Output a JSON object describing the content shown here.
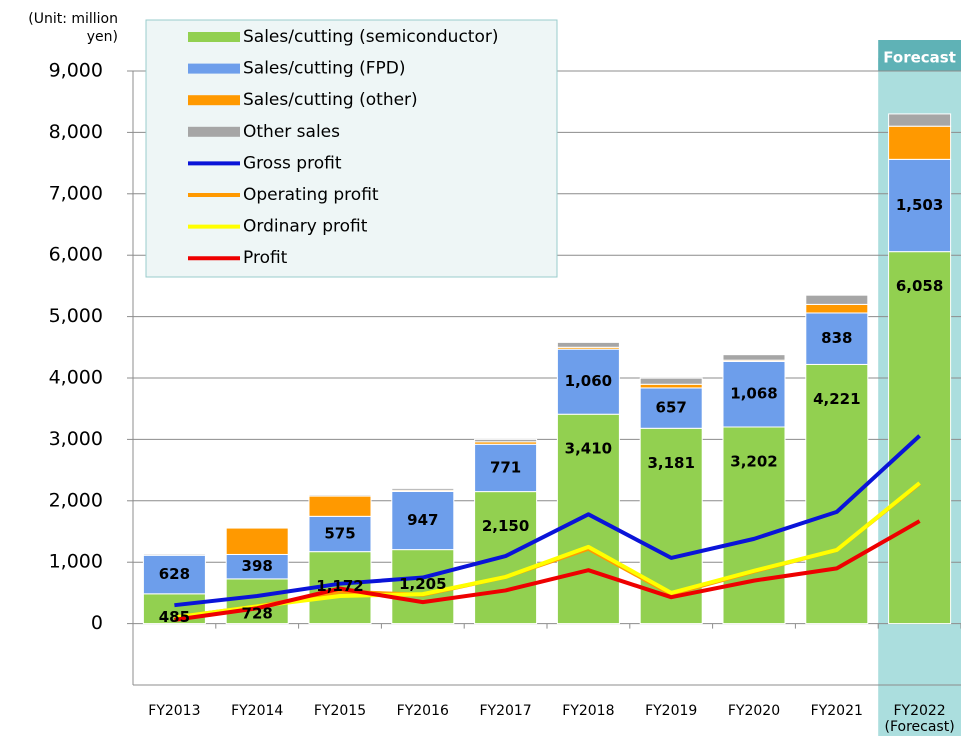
{
  "chart_data": {
    "type": "bar",
    "stacked": true,
    "y_axis_label": "(Unit: million yen)",
    "forecast_label": "Forecast",
    "categories": [
      "FY2013",
      "FY2014",
      "FY2015",
      "FY2016",
      "FY2017",
      "FY2018",
      "FY2019",
      "FY2020",
      "FY2021",
      "FY2022 (Forecast)"
    ],
    "ylim": [
      -1000,
      9000
    ],
    "yticks": [
      0,
      {
        "value": 1000,
        "label": "1,000"
      },
      {
        "value": 2000,
        "label": "2,000"
      },
      {
        "value": 3000,
        "label": "3,000"
      },
      {
        "value": 4000,
        "label": "4,000"
      },
      {
        "value": 5000,
        "label": "5,000"
      },
      {
        "value": 6000,
        "label": "6,000"
      },
      {
        "value": 7000,
        "label": "7,000"
      },
      {
        "value": 8000,
        "label": "8,000"
      },
      {
        "value": 9000,
        "label": "9,000"
      }
    ],
    "grid": true,
    "legend": "top-left",
    "series": [
      {
        "name": "Sales/cutting (semiconductor)",
        "type": "bar",
        "color": "#92d050",
        "values": [
          485,
          728,
          1172,
          1205,
          2150,
          3410,
          3181,
          3202,
          4221,
          6058
        ],
        "value_labels": [
          "485",
          "728",
          "1,172",
          "1,205",
          "2,150",
          "3,410",
          "3,181",
          "3,202",
          "4,221",
          "6,058"
        ]
      },
      {
        "name": "Sales/cutting (FPD)",
        "type": "bar",
        "color": "#6d9eeb",
        "values": [
          628,
          398,
          575,
          947,
          771,
          1060,
          657,
          1068,
          838,
          1503
        ],
        "value_labels": [
          "628",
          "398",
          "575",
          "947",
          "771",
          "1,060",
          "657",
          "1,068",
          "838",
          "1,503"
        ]
      },
      {
        "name": "Sales/cutting (other)",
        "type": "bar",
        "color": "#ff9900",
        "values": [
          0,
          430,
          330,
          20,
          40,
          30,
          60,
          20,
          140,
          540
        ]
      },
      {
        "name": "Other sales",
        "type": "bar",
        "color": "#a6a6a6",
        "values": [
          20,
          0,
          20,
          30,
          40,
          80,
          100,
          90,
          150,
          200
        ]
      },
      {
        "name": "Gross profit",
        "type": "line",
        "color": "#0a14d8",
        "values": [
          300,
          450,
          650,
          750,
          1100,
          1780,
          1070,
          1380,
          1820,
          3060
        ]
      },
      {
        "name": "Operating profit",
        "type": "line",
        "color": "#ff9900",
        "values": [
          100,
          280,
          520,
          470,
          760,
          1220,
          480,
          850,
          1200,
          2280
        ]
      },
      {
        "name": "Ordinary profit",
        "type": "line",
        "color": "#ffff00",
        "values": [
          100,
          280,
          450,
          480,
          760,
          1250,
          500,
          860,
          1200,
          2290
        ]
      },
      {
        "name": "Profit",
        "type": "line",
        "color": "#ee0000",
        "values": [
          60,
          250,
          570,
          350,
          540,
          870,
          430,
          700,
          900,
          1670
        ]
      }
    ]
  }
}
